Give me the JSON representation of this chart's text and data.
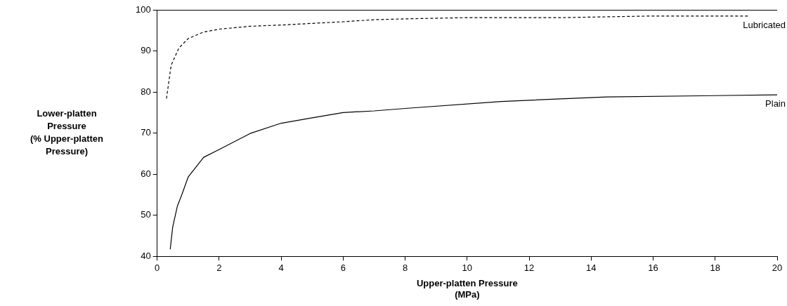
{
  "chart_data": {
    "type": "line",
    "xlabel": "Upper-platten Pressure\n(MPa)",
    "ylabel": "Lower-platten\nPressure\n(% Upper-platten\nPressure)",
    "xlim": [
      0,
      20
    ],
    "xticks": [
      0,
      2,
      4,
      6,
      8,
      10,
      12,
      14,
      16,
      18,
      20
    ],
    "ylim": [
      40,
      100
    ],
    "yticks": [
      40,
      50,
      60,
      70,
      80,
      90,
      100
    ],
    "grid": false,
    "legend": false,
    "marker": "none",
    "series": [
      {
        "name": "Lubricated",
        "color": "#000000",
        "line_style": "dashed",
        "x": [
          0.3,
          0.45,
          0.7,
          1,
          1.5,
          2,
          3,
          4,
          6,
          7,
          8,
          10,
          13,
          16,
          19.1
        ],
        "values": [
          78.4,
          86.5,
          90.7,
          93,
          94.6,
          95.3,
          96,
          96.3,
          97.1,
          97.6,
          97.8,
          98.1,
          98.1,
          98.5,
          98.5
        ]
      },
      {
        "name": "Plain",
        "color": "#000000",
        "line_style": "solid",
        "x": [
          0.42,
          0.5,
          0.65,
          0.8,
          1,
          1.5,
          2,
          3,
          4,
          5,
          6,
          7,
          8,
          11.1,
          14.5,
          20
        ],
        "values": [
          41.7,
          47.1,
          52.2,
          55.1,
          59.3,
          64.1,
          66,
          69.9,
          72.4,
          73.7,
          75,
          75.4,
          76,
          77.7,
          78.8,
          79.3
        ]
      }
    ]
  }
}
